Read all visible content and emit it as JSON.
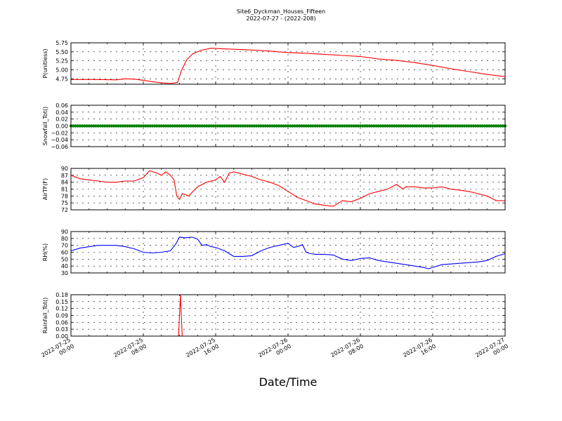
{
  "title": "Site6_Dyckman_Houses_Fifteen",
  "subtitle": "2022-07-27 - (2022-208)",
  "xlabel": "Date/Time",
  "x_ticks": [
    "2022-07-25\n00:00",
    "2022-07-25\n08:00",
    "2022-07-25\n16:00",
    "2022-07-26\n00:00",
    "2022-07-26\n08:00",
    "2022-07-26\n16:00",
    "2022-07-27\n00:00"
  ],
  "chart_data": [
    {
      "type": "line",
      "ylabel": "P(unitless)",
      "ylim": [
        4.6,
        5.75
      ],
      "yticks": [
        "4.75",
        "5.00",
        "5.25",
        "5.50",
        "5.75"
      ],
      "ytick_values": [
        4.75,
        5.0,
        5.25,
        5.5,
        5.75
      ],
      "grid": true,
      "color": "#ff0000",
      "x_hours": [
        0,
        3,
        5,
        6,
        7,
        8,
        9,
        10,
        11,
        11.8,
        12.2,
        12.8,
        13.5,
        14.5,
        15.5,
        17,
        18,
        20,
        22,
        24,
        26,
        28,
        30,
        32,
        34,
        36,
        38,
        40,
        42,
        44,
        46,
        48
      ],
      "values": [
        4.73,
        4.73,
        4.72,
        4.75,
        4.74,
        4.71,
        4.67,
        4.64,
        4.62,
        4.65,
        4.97,
        5.28,
        5.45,
        5.55,
        5.6,
        5.58,
        5.57,
        5.55,
        5.52,
        5.48,
        5.46,
        5.43,
        5.4,
        5.37,
        5.3,
        5.26,
        5.2,
        5.12,
        5.03,
        4.95,
        4.87,
        4.81
      ]
    },
    {
      "type": "scatter",
      "ylabel": "Snowfall_Tot()",
      "ylim": [
        -0.06,
        0.06
      ],
      "yticks": [
        "0.06",
        "0.04",
        "0.02",
        "0.00",
        "−0.02",
        "−0.04",
        "−0.06"
      ],
      "ytick_values": [
        0.06,
        0.04,
        0.02,
        0.0,
        -0.02,
        -0.04,
        -0.06
      ],
      "grid": true,
      "color": "#008000",
      "x_hours": [
        0,
        48
      ],
      "values": [
        0.0,
        0.0
      ]
    },
    {
      "type": "line",
      "ylabel": "AirTF(F)",
      "ylim": [
        72,
        90
      ],
      "yticks": [
        "90",
        "87",
        "84",
        "81",
        "78",
        "75",
        "72"
      ],
      "ytick_values": [
        90,
        87,
        84,
        81,
        78,
        75,
        72
      ],
      "grid": true,
      "color": "#ff0000",
      "x_hours": [
        0,
        1,
        2,
        3,
        4,
        5,
        6,
        7,
        8,
        8.7,
        9.5,
        10,
        10.5,
        11,
        11.4,
        11.7,
        12,
        12.3,
        12.7,
        13,
        14,
        15,
        16,
        16.5,
        17,
        17.5,
        18,
        19,
        20,
        21,
        22,
        23,
        24,
        25,
        26,
        27,
        28,
        29,
        30,
        31,
        32,
        33,
        34,
        35,
        36,
        36.7,
        37,
        38,
        39,
        40,
        41,
        42,
        43,
        44,
        45,
        46,
        47,
        48
      ],
      "values": [
        87,
        85.5,
        85,
        84.5,
        84,
        84,
        84.5,
        84.5,
        86,
        89,
        88,
        87,
        88.5,
        87,
        85,
        78,
        76.5,
        79,
        78.5,
        78,
        82,
        84,
        85,
        86.5,
        84,
        88,
        88.5,
        87.5,
        86.5,
        85,
        84,
        82.5,
        80,
        77.5,
        76,
        74.5,
        74,
        73.5,
        76,
        75.5,
        77,
        79,
        80,
        81,
        83,
        81,
        82,
        82,
        81.5,
        81.5,
        82,
        81,
        80.5,
        80,
        79,
        78,
        76,
        76
      ]
    },
    {
      "type": "line",
      "ylabel": "RH(%)",
      "ylim": [
        30,
        90
      ],
      "yticks": [
        "90",
        "80",
        "70",
        "60",
        "50",
        "40",
        "30"
      ],
      "ytick_values": [
        90,
        80,
        70,
        60,
        50,
        40,
        30
      ],
      "grid": true,
      "color": "#0000ff",
      "x_hours": [
        0,
        1,
        2,
        3,
        4,
        5,
        6,
        7,
        8,
        9,
        10,
        11,
        11.6,
        12,
        12.6,
        13.4,
        14,
        14.5,
        15,
        15.5,
        16,
        17,
        18,
        19,
        20,
        21,
        22,
        23,
        24,
        24.6,
        25,
        25.6,
        26,
        26.5,
        27,
        28,
        29,
        30,
        31,
        32,
        33,
        34,
        35,
        36,
        37,
        38,
        39,
        39.5,
        40,
        41,
        42,
        43,
        44,
        45,
        46,
        47,
        48
      ],
      "values": [
        62,
        66,
        68,
        70,
        70,
        70,
        68,
        65,
        60,
        59,
        60,
        62,
        72,
        82,
        81,
        82,
        79,
        70,
        71,
        68,
        67,
        62,
        54,
        54,
        55,
        62,
        67,
        70,
        73,
        67,
        68,
        71,
        60,
        58,
        57,
        57,
        56,
        50,
        48,
        51,
        52,
        48,
        46,
        44,
        42,
        40,
        38,
        36,
        38,
        42,
        43,
        44,
        45,
        46,
        48,
        54,
        58
      ]
    },
    {
      "type": "line",
      "ylabel": "Rainfall_Tot()",
      "ylim": [
        0,
        0.18
      ],
      "yticks": [
        "0.18",
        "0.15",
        "0.12",
        "0.09",
        "0.06",
        "0.03",
        "0.00"
      ],
      "ytick_values": [
        0.18,
        0.15,
        0.12,
        0.09,
        0.06,
        0.03,
        0.0
      ],
      "grid": true,
      "color": "#ff0000",
      "x_hours": [
        0,
        11.9,
        12.1,
        12.3,
        48
      ],
      "values": [
        0,
        0,
        0.18,
        0,
        0
      ]
    }
  ]
}
